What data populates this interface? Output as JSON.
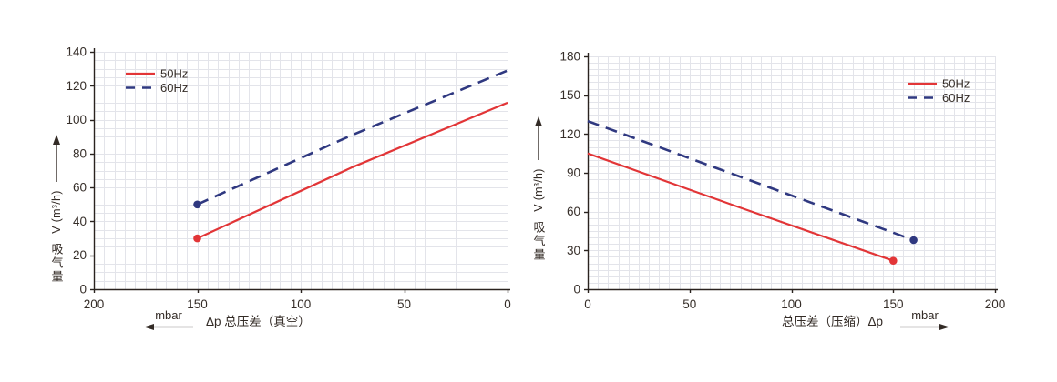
{
  "styles": {
    "grid_color": "#e3e4ea",
    "axis_color": "#2a231f",
    "text_color": "#362e29",
    "red_50hz": "#e23537",
    "navy_60hz": "#2f3880"
  },
  "chart_data": [
    {
      "id": "vacuum",
      "type": "line",
      "xlabel": "Δp  总压差（真空）",
      "x_unit": "mbar",
      "x_arrow_direction": "left",
      "ylabel_cn": "吸气量",
      "ylabel_unit": "V (m³/h)",
      "x_reversed": true,
      "xlim": [
        0,
        200
      ],
      "x_ticks": [
        200,
        150,
        100,
        50,
        0
      ],
      "ylim": [
        0,
        140
      ],
      "y_ticks": [
        0,
        20,
        40,
        60,
        80,
        100,
        120,
        140
      ],
      "grid_minor_step": 5,
      "legend_position": "top-left",
      "series": [
        {
          "name": "50Hz",
          "color": "#e23537",
          "line_style": "solid",
          "marker_at": "first",
          "points": [
            [
              150,
              30
            ],
            [
              75,
              72
            ],
            [
              0,
              110
            ]
          ]
        },
        {
          "name": "60Hz",
          "color": "#2f3880",
          "line_style": "dashed",
          "marker_at": "first",
          "points": [
            [
              150,
              50
            ],
            [
              75,
              91
            ],
            [
              0,
              129
            ]
          ]
        }
      ]
    },
    {
      "id": "compression",
      "type": "line",
      "xlabel": "总压差（压缩）Δp",
      "x_unit": "mbar",
      "x_arrow_direction": "right",
      "ylabel_cn": "吸气量",
      "ylabel_unit": "V (m³/h)",
      "x_reversed": false,
      "xlim": [
        0,
        200
      ],
      "x_ticks": [
        0,
        50,
        100,
        150,
        200
      ],
      "ylim": [
        0,
        180
      ],
      "y_ticks": [
        0,
        30,
        60,
        90,
        120,
        150,
        180
      ],
      "grid_minor_step": 5,
      "legend_position": "top-right",
      "series": [
        {
          "name": "50Hz",
          "color": "#e23537",
          "line_style": "solid",
          "marker_at": "last",
          "points": [
            [
              0,
              105
            ],
            [
              75,
              63
            ],
            [
              150,
              22
            ]
          ]
        },
        {
          "name": "60Hz",
          "color": "#2f3880",
          "line_style": "dashed",
          "marker_at": "last",
          "points": [
            [
              0,
              130
            ],
            [
              80,
              84
            ],
            [
              160,
              38
            ]
          ]
        }
      ]
    }
  ]
}
